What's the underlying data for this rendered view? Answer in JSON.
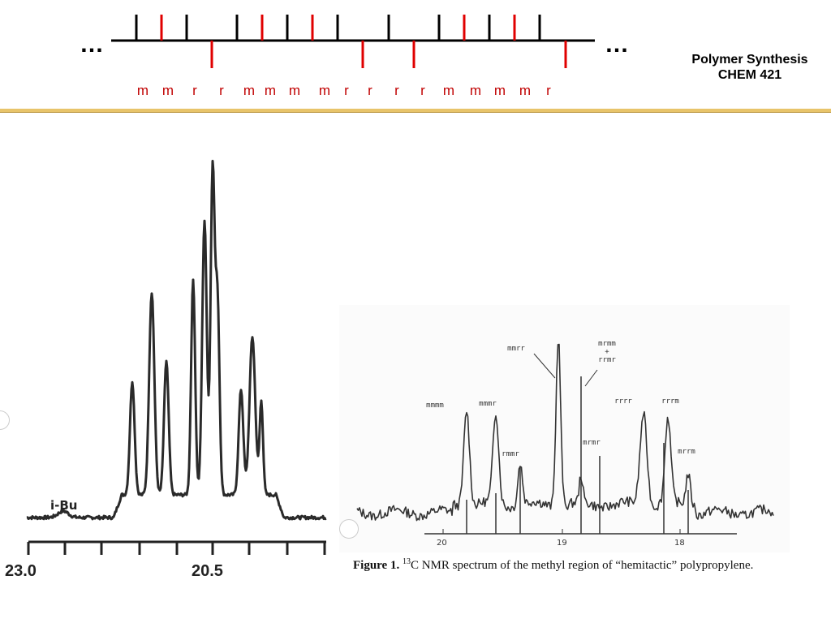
{
  "header": {
    "ellipsis_left": "…",
    "ellipsis_right": "…",
    "course_title": "Polymer Synthesis",
    "course_code": "CHEM 421",
    "dyad_labels": [
      "m",
      "m",
      "r",
      "r",
      "m",
      "m",
      "m",
      "m",
      "r",
      "r",
      "r",
      "r",
      "m",
      "m",
      "m",
      "m",
      "r"
    ]
  },
  "spectrum_left": {
    "peak_label": "i-Bu",
    "axis_ticks": [
      "23.0",
      "20.5"
    ]
  },
  "spectrum_right": {
    "peak_labels": [
      "mmmm",
      "mmmr",
      "rmmr",
      "mmrr",
      "mrmm + rrmr",
      "mrmr",
      "rrrr",
      "rrrm",
      "mrrm"
    ],
    "axis_ticks": [
      "20",
      "19",
      "18"
    ],
    "figure_label": "Figure 1.",
    "caption_superscript": "13",
    "caption_text": "C NMR spectrum of the methyl region of “hemitactic” polypropylene."
  }
}
